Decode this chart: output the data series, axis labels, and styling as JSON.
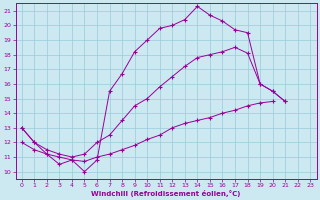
{
  "background_color": "#cce8f0",
  "grid_color": "#99ccdd",
  "line_color": "#990099",
  "xlabel": "Windchill (Refroidissement éolien,°C)",
  "xlim": [
    -0.5,
    23.5
  ],
  "ylim": [
    9.5,
    21.5
  ],
  "xticks": [
    0,
    1,
    2,
    3,
    4,
    5,
    6,
    7,
    8,
    9,
    10,
    11,
    12,
    13,
    14,
    15,
    16,
    17,
    18,
    19,
    20,
    21,
    22,
    23
  ],
  "yticks": [
    10,
    11,
    12,
    13,
    14,
    15,
    16,
    17,
    18,
    19,
    20,
    21
  ],
  "series": [
    {
      "x": [
        0,
        1,
        2,
        3,
        4,
        5,
        6,
        7,
        8,
        9,
        10,
        11,
        12,
        13,
        14,
        15,
        16,
        17,
        18,
        19,
        20,
        21,
        22,
        23
      ],
      "y": [
        13,
        12,
        11.2,
        10.5,
        10.8,
        10.0,
        10.8,
        15.5,
        16.7,
        18.2,
        19.0,
        19.8,
        20.0,
        20.4,
        21.3,
        20.7,
        20.3,
        19.7,
        19.5,
        16.0,
        15.5,
        14.8,
        null,
        null
      ]
    },
    {
      "x": [
        0,
        1,
        2,
        3,
        4,
        5,
        6,
        7,
        8,
        9,
        10,
        11,
        12,
        13,
        14,
        15,
        16,
        17,
        18,
        19,
        20,
        21,
        22,
        23
      ],
      "y": [
        13.0,
        12.0,
        11.5,
        11.2,
        11.0,
        11.2,
        12.0,
        12.5,
        13.5,
        14.5,
        15.0,
        15.8,
        16.5,
        17.2,
        17.8,
        18.0,
        18.2,
        18.5,
        18.1,
        16.0,
        15.5,
        14.8,
        null,
        null
      ]
    },
    {
      "x": [
        0,
        1,
        2,
        3,
        4,
        5,
        6,
        7,
        8,
        9,
        10,
        11,
        12,
        13,
        14,
        15,
        16,
        17,
        18,
        19,
        20,
        21,
        22,
        23
      ],
      "y": [
        12.0,
        11.5,
        11.2,
        11.0,
        10.8,
        10.7,
        11.0,
        11.2,
        11.5,
        11.8,
        12.2,
        12.5,
        13.0,
        13.3,
        13.5,
        13.7,
        14.0,
        14.2,
        14.5,
        14.7,
        14.8,
        null,
        null,
        null
      ]
    }
  ]
}
